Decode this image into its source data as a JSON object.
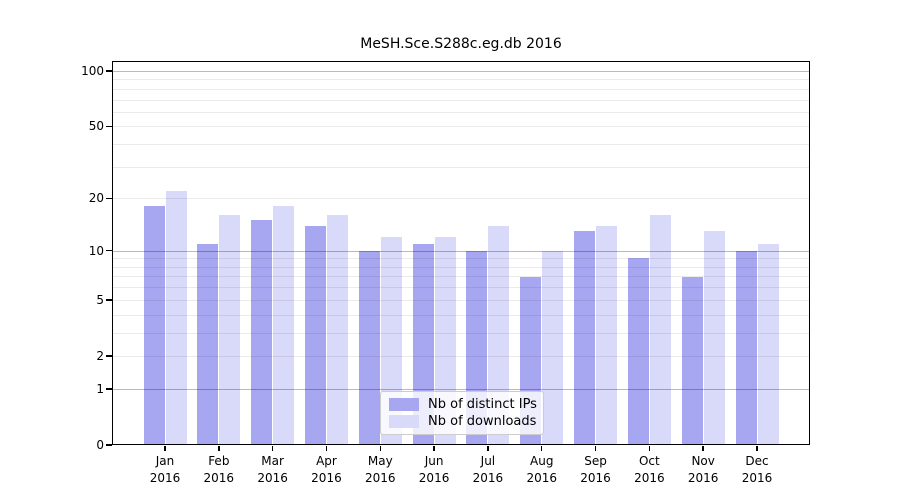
{
  "chart_data": {
    "type": "bar",
    "title": "MeSH.Sce.S288c.eg.db 2016",
    "categories": [
      "Jan 2016",
      "Feb 2016",
      "Mar 2016",
      "Apr 2016",
      "May 2016",
      "Jun 2016",
      "Jul 2016",
      "Aug 2016",
      "Sep 2016",
      "Oct 2016",
      "Nov 2016",
      "Dec 2016"
    ],
    "series": [
      {
        "name": "Nb of distinct IPs",
        "color": "#a6a6f1",
        "values": [
          18,
          11,
          15,
          14,
          10,
          11,
          10,
          7,
          13,
          9,
          7,
          10
        ]
      },
      {
        "name": "Nb of downloads",
        "color": "#d9d9f9",
        "values": [
          22,
          16,
          18,
          16,
          12,
          12,
          14,
          10,
          14,
          16,
          13,
          11
        ]
      }
    ],
    "yscale": "log1p",
    "ylim": [
      0,
      113
    ],
    "y_ticks": [
      0,
      1,
      2,
      5,
      10,
      20,
      50,
      100
    ],
    "y_major_gridlines": [
      1,
      10,
      100
    ],
    "y_minor_gridlines": [
      2,
      3,
      4,
      5,
      6,
      7,
      8,
      9,
      20,
      30,
      40,
      50,
      60,
      70,
      80,
      90
    ],
    "grid": true,
    "legend_position": "lower center"
  }
}
